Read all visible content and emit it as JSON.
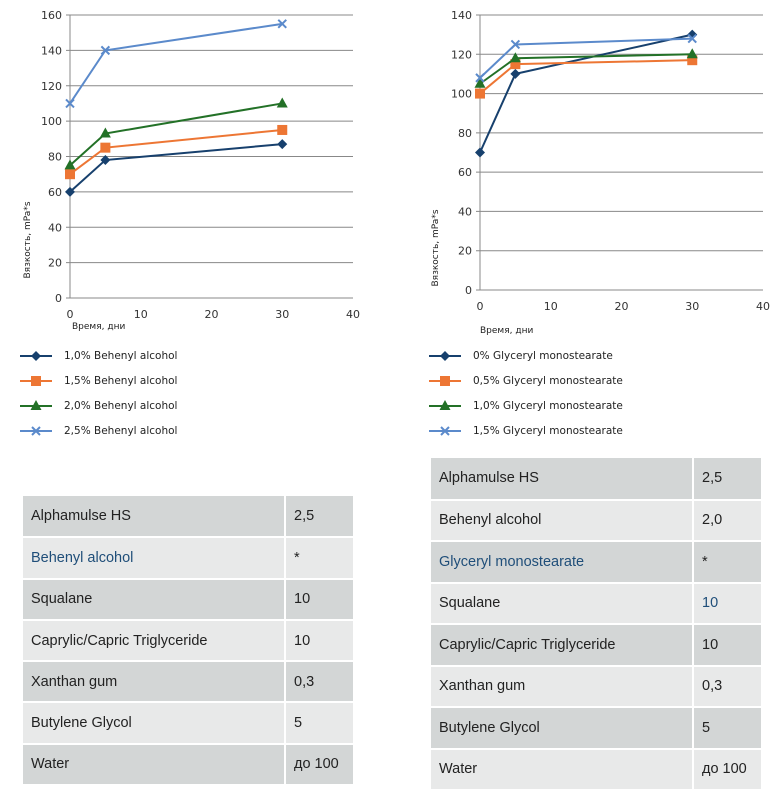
{
  "colors": {
    "s1": "#17406d",
    "s2": "#ed7634",
    "s3": "#237127",
    "s4": "#5b8acb",
    "grid": "#888888",
    "highlight": "#1f4e79"
  },
  "chart_data": [
    {
      "type": "line",
      "title": "",
      "xlabel": "Время, дни",
      "ylabel": "Вязкость, mPa*s",
      "xlim": [
        0,
        40
      ],
      "ylim": [
        0,
        160
      ],
      "xticks": [
        "0",
        "10",
        "20",
        "30",
        "40"
      ],
      "yticks": [
        "0",
        "20",
        "40",
        "60",
        "80",
        "100",
        "120",
        "140",
        "160"
      ],
      "grid": "horizontal",
      "legend_position": "bottom",
      "x": [
        0,
        5,
        30
      ],
      "series": [
        {
          "name": "1,0% Behenyl alcohol",
          "marker": "diamond",
          "values": [
            60,
            78,
            87
          ]
        },
        {
          "name": "1,5% Behenyl alcohol",
          "marker": "square",
          "values": [
            70,
            85,
            95
          ]
        },
        {
          "name": "2,0% Behenyl alcohol",
          "marker": "triangle",
          "values": [
            75,
            93,
            110
          ]
        },
        {
          "name": "2,5% Behenyl alcohol",
          "marker": "x",
          "values": [
            110,
            140,
            155
          ]
        }
      ]
    },
    {
      "type": "line",
      "title": "",
      "xlabel": "Время, дни",
      "ylabel": "Вязкость, mPa*s",
      "xlim": [
        0,
        40
      ],
      "ylim": [
        0,
        140
      ],
      "xticks": [
        "0",
        "10",
        "20",
        "30",
        "40"
      ],
      "yticks": [
        "0",
        "20",
        "40",
        "60",
        "80",
        "100",
        "120",
        "140"
      ],
      "grid": "horizontal",
      "legend_position": "bottom",
      "x": [
        0,
        5,
        30
      ],
      "series": [
        {
          "name": "0% Glyceryl monostearate",
          "marker": "diamond",
          "values": [
            70,
            110,
            130
          ]
        },
        {
          "name": "0,5% Glyceryl monostearate",
          "marker": "square",
          "values": [
            100,
            115,
            117
          ]
        },
        {
          "name": "1,0% Glyceryl monostearate",
          "marker": "triangle",
          "values": [
            105,
            118,
            120
          ]
        },
        {
          "name": "1,5% Glyceryl monostearate",
          "marker": "x",
          "values": [
            108,
            125,
            128
          ]
        }
      ]
    }
  ],
  "tables": [
    {
      "rows": [
        {
          "name": "Alphamulse HS",
          "value": "2,5"
        },
        {
          "name": "Behenyl alcohol",
          "value": "*",
          "highlight_name": true
        },
        {
          "name": "Squalane",
          "value": "10"
        },
        {
          "name": "Caprylic/Capric Triglyceride",
          "value": "10"
        },
        {
          "name": "Xanthan gum",
          "value": "0,3"
        },
        {
          "name": "Butylene Glycol",
          "value": "5"
        },
        {
          "name": "Water",
          "value": "до 100"
        }
      ]
    },
    {
      "rows": [
        {
          "name": "Alphamulse HS",
          "value": "2,5"
        },
        {
          "name": "Behenyl alcohol",
          "value": "2,0"
        },
        {
          "name": "Glyceryl monostearate",
          "value": "*",
          "highlight_name": true
        },
        {
          "name": "Squalane",
          "value": "10",
          "highlight_value": true
        },
        {
          "name": "Caprylic/Capric Triglyceride",
          "value": "10"
        },
        {
          "name": "Xanthan gum",
          "value": "0,3"
        },
        {
          "name": "Butylene Glycol",
          "value": "5"
        },
        {
          "name": "Water",
          "value": "до 100"
        }
      ]
    }
  ]
}
